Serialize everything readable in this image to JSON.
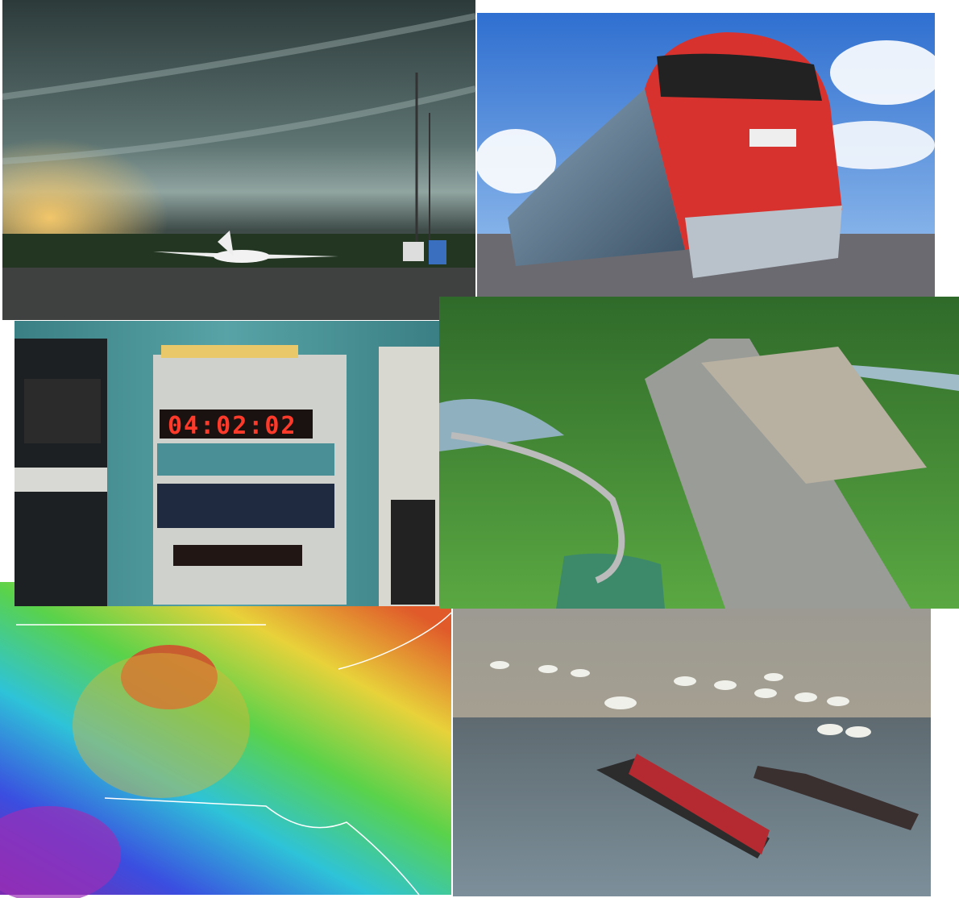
{
  "panels": {
    "clock": {
      "display": "04:02:02"
    }
  }
}
